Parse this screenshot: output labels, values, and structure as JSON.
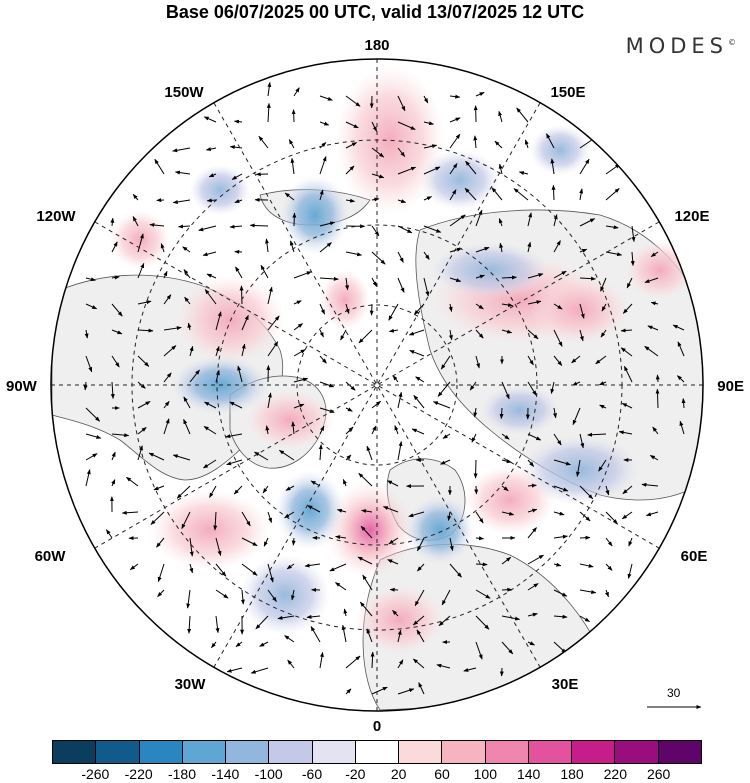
{
  "header": {
    "title": "Base 06/07/2025 00 UTC, valid 13/07/2025 12 UTC",
    "brand": "MODES",
    "brand_mark": "©"
  },
  "map": {
    "projection": "north polar stereographic",
    "longitude_labels": {
      "top": "180",
      "bottom": "0",
      "left": "90W",
      "right": "90E",
      "upper_left": "150W",
      "upper_right": "150E",
      "mid_upper_left": "120W",
      "mid_upper_right": "120E",
      "mid_lower_left": "60W",
      "mid_lower_right": "60E",
      "lower_left": "30W",
      "lower_right": "30E"
    },
    "reference_vector": "30",
    "colors": {
      "ocean": "#ffffff",
      "land": "#efefef",
      "coast": "#555555",
      "grid": "#222222"
    }
  },
  "colorbar": {
    "ticks": [
      "-260",
      "-220",
      "-180",
      "-140",
      "-100",
      "-60",
      "-20",
      "20",
      "60",
      "100",
      "140",
      "180",
      "220",
      "260"
    ],
    "colors": [
      "#0b3d5c",
      "#115b8c",
      "#2a86c1",
      "#5ea6d3",
      "#93b7dc",
      "#c3c9e6",
      "#e3e3f1",
      "#ffffff",
      "#fadadb",
      "#f5b4c0",
      "#ef86ae",
      "#e2529e",
      "#c61d8a",
      "#9a0d7e",
      "#60046b"
    ]
  }
}
